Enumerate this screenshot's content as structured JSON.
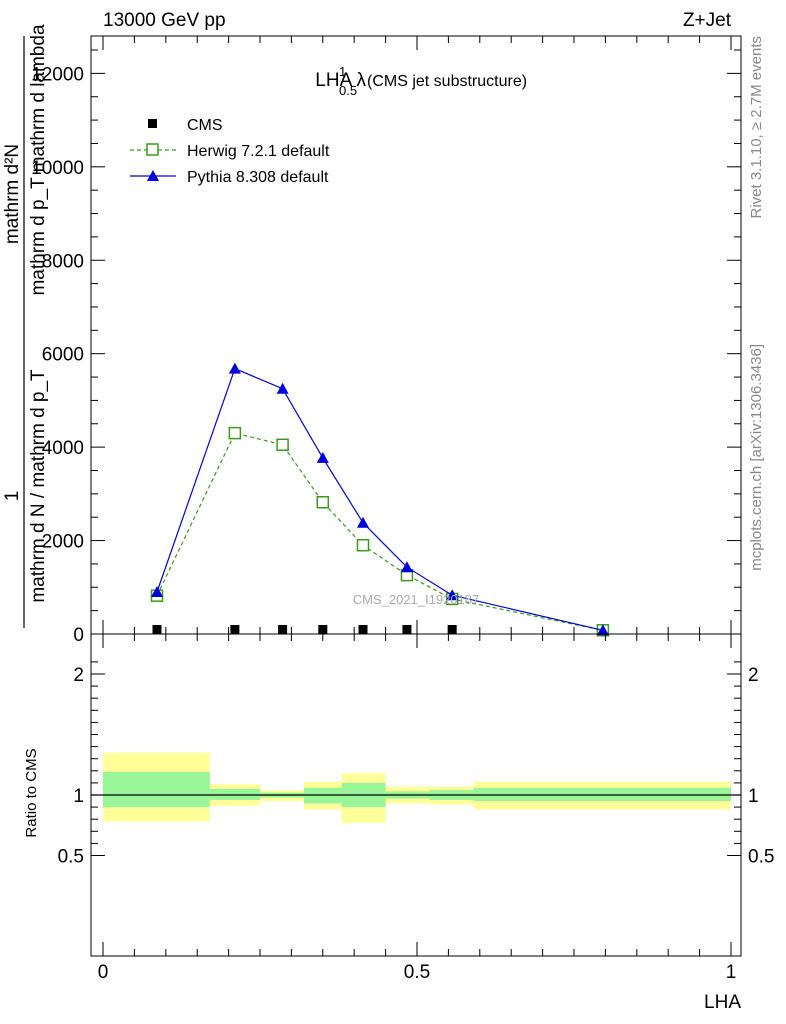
{
  "header": {
    "energy_label": "13000 GeV pp",
    "process_label": "Z+Jet",
    "rivet_label": "Rivet 3.1.10, ≥ 2.7M events",
    "mcplots_label": "mcplots.cern.ch [arXiv:1306.3436]",
    "watermark": "CMS_2021_I1920187"
  },
  "chart_data": [
    {
      "type": "line",
      "title_main": "LHA λ",
      "title_sup": "1",
      "title_sub": "0.5",
      "title_extra": "(CMS jet substructure)",
      "ylabel_top": "mathrm d²N",
      "ylabel_top2": "mathrm d p_T mathrm d lambda",
      "ylabel_left": "1",
      "ylabel_left2": "mathrm d N / mathrm d p_T",
      "ylim": [
        0,
        12800
      ],
      "xlim": [
        0,
        1
      ],
      "yticks": [
        0,
        2000,
        4000,
        6000,
        8000,
        10000,
        12000
      ],
      "ytick_labels": [
        "0",
        "2000",
        "4000",
        "6000",
        "8000",
        "10000",
        "12000"
      ],
      "legend_position": "top-left",
      "series": [
        {
          "name": "CMS",
          "color": "#000000",
          "marker": "square-filled",
          "x": [
            0.086,
            0.21,
            0.286,
            0.35,
            0.414,
            0.484,
            0.556
          ],
          "y": [
            0,
            0,
            0,
            0,
            0,
            0,
            0
          ]
        },
        {
          "name": "Herwig 7.2.1 default",
          "color": "#3a9a1a",
          "marker": "square-open",
          "dashed": true,
          "x": [
            0.086,
            0.21,
            0.286,
            0.35,
            0.414,
            0.484,
            0.556,
            0.796
          ],
          "y": [
            820,
            4300,
            4050,
            2820,
            1900,
            1260,
            750,
            80
          ]
        },
        {
          "name": "Pythia 8.308 default",
          "color": "#0000dd",
          "marker": "triangle-filled",
          "dashed": false,
          "x": [
            0.086,
            0.21,
            0.286,
            0.35,
            0.414,
            0.484,
            0.556,
            0.796
          ],
          "y": [
            900,
            5680,
            5250,
            3770,
            2380,
            1430,
            830,
            80
          ]
        }
      ]
    },
    {
      "type": "area",
      "ylabel": "Ratio to CMS",
      "xlabel": "LHA",
      "xlim": [
        0,
        1
      ],
      "ylim": [
        0.36,
        2.25
      ],
      "xticks": [
        0,
        0.5,
        1
      ],
      "xtick_labels": [
        "0",
        "0.5",
        "1"
      ],
      "yticks": [
        0.5,
        1,
        2
      ],
      "ytick_labels": [
        "0.5",
        "1",
        "2"
      ],
      "bins": [
        {
          "lo": 0.0,
          "hi": 0.17,
          "green": [
            0.9,
            1.19
          ],
          "yellow": [
            0.78,
            1.35
          ]
        },
        {
          "lo": 0.17,
          "hi": 0.25,
          "green": [
            0.96,
            1.05
          ],
          "yellow": [
            0.91,
            1.09
          ]
        },
        {
          "lo": 0.25,
          "hi": 0.32,
          "green": [
            0.98,
            1.02
          ],
          "yellow": [
            0.95,
            1.04
          ]
        },
        {
          "lo": 0.32,
          "hi": 0.38,
          "green": [
            0.93,
            1.06
          ],
          "yellow": [
            0.88,
            1.11
          ]
        },
        {
          "lo": 0.38,
          "hi": 0.45,
          "green": [
            0.9,
            1.1
          ],
          "yellow": [
            0.77,
            1.18
          ]
        },
        {
          "lo": 0.45,
          "hi": 0.52,
          "green": [
            0.97,
            1.03
          ],
          "yellow": [
            0.93,
            1.07
          ]
        },
        {
          "lo": 0.52,
          "hi": 0.59,
          "green": [
            0.96,
            1.04
          ],
          "yellow": [
            0.92,
            1.07
          ]
        },
        {
          "lo": 0.59,
          "hi": 1.0,
          "green": [
            0.95,
            1.06
          ],
          "yellow": [
            0.88,
            1.11
          ]
        }
      ]
    }
  ]
}
